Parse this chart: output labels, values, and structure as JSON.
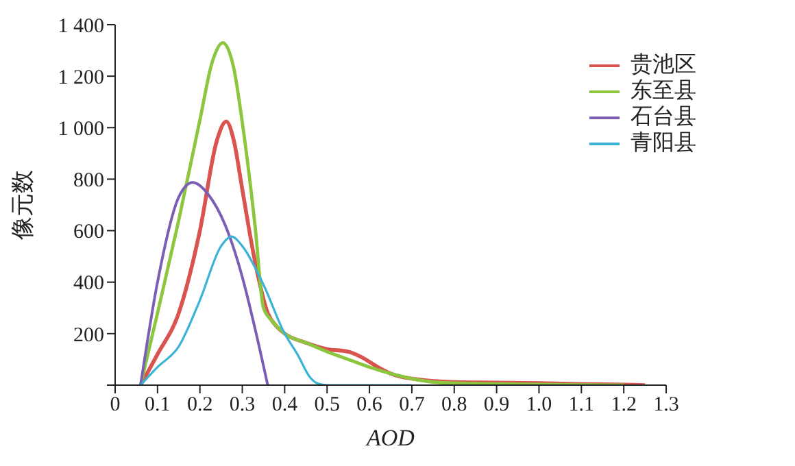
{
  "chart_data": {
    "type": "line",
    "xlabel": "AOD",
    "ylabel": "像元数",
    "xlim": [
      0,
      1.3
    ],
    "ylim": [
      0,
      1400
    ],
    "xticks": [
      0,
      0.1,
      0.2,
      0.3,
      0.4,
      0.5,
      0.6,
      0.7,
      0.8,
      0.9,
      {
        "value": 1,
        "label": "1.0"
      },
      1.1,
      1.2,
      1.3
    ],
    "yticks": [
      {
        "value": 0,
        "label": null
      },
      200,
      400,
      600,
      800,
      {
        "value": 1000,
        "label": "1 000"
      },
      {
        "value": 1200,
        "label": "1 200"
      },
      {
        "value": 1400,
        "label": "1 400"
      }
    ],
    "grid": false,
    "legend": "top right",
    "marker": "none",
    "line_style": "solid",
    "series": [
      {
        "name": "贵池区",
        "color": "#d9534f",
        "x": [
          0.06,
          0.1,
          0.15,
          0.2,
          0.24,
          0.262,
          0.28,
          0.3,
          0.33,
          0.36,
          0.38,
          0.4,
          0.45,
          0.5,
          0.55,
          0.58,
          0.62,
          0.65,
          0.7,
          0.8,
          0.9,
          1.0,
          1.1,
          1.2,
          1.25
        ],
        "values": [
          0,
          120,
          280,
          600,
          950,
          1024,
          950,
          760,
          480,
          280,
          230,
          200,
          165,
          140,
          130,
          110,
          70,
          45,
          25,
          12,
          10,
          8,
          4,
          2,
          0
        ]
      },
      {
        "name": "东至县",
        "color": "#8cc63f",
        "x": [
          0.06,
          0.1,
          0.15,
          0.2,
          0.23,
          0.254,
          0.28,
          0.3,
          0.33,
          0.35,
          0.37,
          0.4,
          0.45,
          0.5,
          0.55,
          0.6,
          0.65,
          0.7,
          0.75,
          0.8,
          0.9,
          1.0,
          1.1,
          1.2
        ],
        "values": [
          0,
          280,
          640,
          1030,
          1260,
          1330,
          1230,
          1020,
          620,
          300,
          250,
          200,
          165,
          130,
          100,
          70,
          45,
          25,
          12,
          8,
          5,
          3,
          1,
          0
        ]
      },
      {
        "name": "石台县",
        "color": "#7a5fb5",
        "x": [
          0.06,
          0.1,
          0.15,
          0.183,
          0.22,
          0.26,
          0.3,
          0.33,
          0.36
        ],
        "values": [
          0,
          400,
          730,
          787,
          740,
          620,
          420,
          220,
          0
        ]
      },
      {
        "name": "青阳县",
        "color": "#3bb3d6",
        "x": [
          0.06,
          0.1,
          0.15,
          0.2,
          0.25,
          0.275,
          0.3,
          0.35,
          0.4,
          0.43,
          0.46,
          0.48,
          0.5,
          0.6,
          0.7
        ],
        "values": [
          0,
          70,
          150,
          330,
          540,
          577,
          540,
          390,
          200,
          120,
          30,
          5,
          0,
          0,
          0
        ]
      }
    ]
  }
}
